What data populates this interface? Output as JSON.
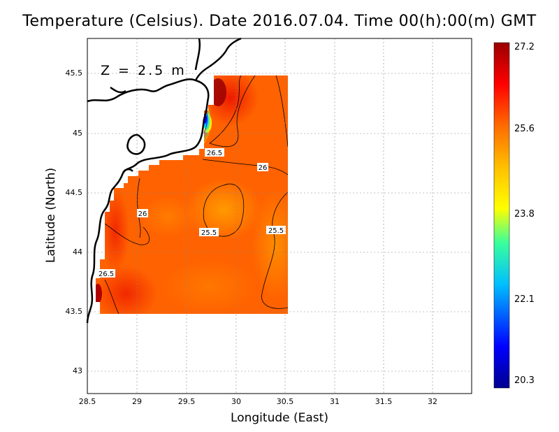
{
  "title": "Temperature (Celsius). Date 2016.07.04. Time 00(h):00(m) GMT",
  "xlabel": "Longitude (East)",
  "ylabel": "Latitude (North)",
  "depth_label": "Z = 2.5 m",
  "x_ticks": [
    "28.5",
    "29",
    "29.5",
    "30",
    "30.5",
    "31",
    "31.5",
    "32"
  ],
  "y_ticks": [
    "43",
    "43.5",
    "44",
    "44.5",
    "45",
    "45.5"
  ],
  "colorbar": {
    "ticks": [
      "20.3",
      "22.1",
      "23.8",
      "25.6",
      "27.2"
    ],
    "colors": [
      "#00008f",
      "#0000ff",
      "#00bfff",
      "#39ff9c",
      "#ffff00",
      "#ffbf00",
      "#ff6a00",
      "#ff0000",
      "#9a0000"
    ]
  },
  "contour_labels": [
    "26.5",
    "26",
    "26",
    "25.5",
    "25.5",
    "26.5"
  ],
  "chart_data": {
    "type": "heatmap",
    "title": "Temperature (Celsius). Date 2016.07.04. Time 00(h):00(m) GMT",
    "xlabel": "Longitude (East)",
    "ylabel": "Latitude (North)",
    "xlim": [
      28.5,
      32.45
    ],
    "ylim": [
      42.8,
      45.8
    ],
    "value_range": [
      20.3,
      27.2
    ],
    "grid": true,
    "contour_levels": [
      25.5,
      26,
      26.5
    ],
    "annotation": "Z = 2.5 m"
  }
}
